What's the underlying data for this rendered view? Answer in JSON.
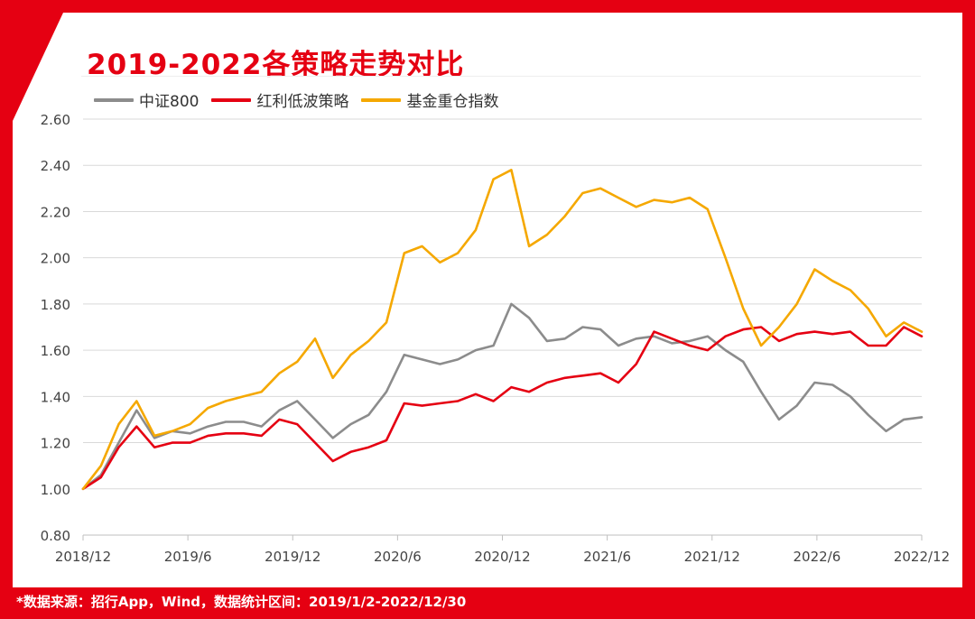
{
  "title": "2019-2022各策略走势对比",
  "footer_note": "*数据来源：招行App，Wind，数据统计区间：2019/1/2-2022/12/30",
  "colors": {
    "frame": "#e50012",
    "csi800": "#8c8c8c",
    "dividend": "#e50012",
    "fund": "#f5a800",
    "grid": "#d9d9d9"
  },
  "chart_data": {
    "type": "line",
    "title": "2019-2022各策略走势对比",
    "x_tick_labels": [
      "2018/12",
      "2019/6",
      "2019/12",
      "2020/6",
      "2020/12",
      "2021/6",
      "2021/12",
      "2022/6",
      "2022/12"
    ],
    "y_tick_labels": [
      "0.80",
      "1.00",
      "1.20",
      "1.40",
      "1.60",
      "1.80",
      "2.00",
      "2.20",
      "2.40",
      "2.60"
    ],
    "ylim": [
      0.8,
      2.6
    ],
    "grid": true,
    "legend_position": "top-left",
    "x": [
      "2019/1",
      "2019/2",
      "2019/3",
      "2019/4",
      "2019/5",
      "2019/6",
      "2019/7",
      "2019/8",
      "2019/9",
      "2019/10",
      "2019/11",
      "2019/12",
      "2020/1",
      "2020/2",
      "2020/3",
      "2020/4",
      "2020/5",
      "2020/6",
      "2020/7",
      "2020/8",
      "2020/9",
      "2020/10",
      "2020/11",
      "2020/12",
      "2021/1",
      "2021/2",
      "2021/3",
      "2021/4",
      "2021/5",
      "2021/6",
      "2021/7",
      "2021/8",
      "2021/9",
      "2021/10",
      "2021/11",
      "2021/12",
      "2022/1",
      "2022/2",
      "2022/3",
      "2022/4",
      "2022/5",
      "2022/6",
      "2022/7",
      "2022/8",
      "2022/9",
      "2022/10",
      "2022/11",
      "2022/12"
    ],
    "series": [
      {
        "name": "中证800",
        "color": "#8c8c8c",
        "values": [
          1.0,
          1.06,
          1.2,
          1.34,
          1.22,
          1.25,
          1.24,
          1.27,
          1.29,
          1.29,
          1.27,
          1.34,
          1.38,
          1.3,
          1.22,
          1.28,
          1.32,
          1.42,
          1.58,
          1.56,
          1.54,
          1.56,
          1.6,
          1.62,
          1.8,
          1.74,
          1.64,
          1.65,
          1.7,
          1.69,
          1.62,
          1.65,
          1.66,
          1.63,
          1.64,
          1.66,
          1.6,
          1.55,
          1.42,
          1.3,
          1.36,
          1.46,
          1.45,
          1.4,
          1.32,
          1.25,
          1.3,
          1.31
        ]
      },
      {
        "name": "红利低波策略",
        "color": "#e50012",
        "values": [
          1.0,
          1.05,
          1.18,
          1.27,
          1.18,
          1.2,
          1.2,
          1.23,
          1.24,
          1.24,
          1.23,
          1.3,
          1.28,
          1.2,
          1.12,
          1.16,
          1.18,
          1.21,
          1.37,
          1.36,
          1.37,
          1.38,
          1.41,
          1.38,
          1.44,
          1.42,
          1.46,
          1.48,
          1.49,
          1.5,
          1.46,
          1.54,
          1.68,
          1.65,
          1.62,
          1.6,
          1.66,
          1.69,
          1.7,
          1.64,
          1.67,
          1.68,
          1.67,
          1.68,
          1.62,
          1.62,
          1.7,
          1.66
        ]
      },
      {
        "name": "基金重仓指数",
        "color": "#f5a800",
        "values": [
          1.0,
          1.1,
          1.28,
          1.38,
          1.23,
          1.25,
          1.28,
          1.35,
          1.38,
          1.4,
          1.42,
          1.5,
          1.55,
          1.65,
          1.48,
          1.58,
          1.64,
          1.72,
          2.02,
          2.05,
          1.98,
          2.02,
          2.12,
          2.34,
          2.38,
          2.05,
          2.1,
          2.18,
          2.28,
          2.3,
          2.26,
          2.22,
          2.25,
          2.24,
          2.26,
          2.21,
          2.0,
          1.78,
          1.62,
          1.7,
          1.8,
          1.95,
          1.9,
          1.86,
          1.78,
          1.66,
          1.72,
          1.68
        ]
      }
    ]
  }
}
